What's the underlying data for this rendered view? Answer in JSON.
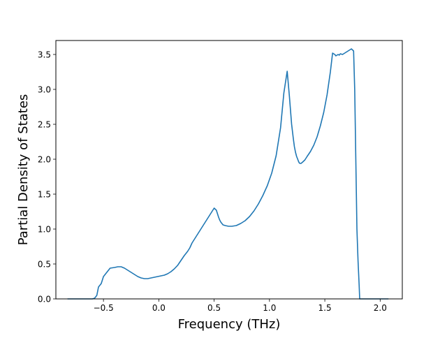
{
  "chart_data": {
    "type": "line",
    "title": "",
    "xlabel": "Frequency (THz)",
    "ylabel": "Partial Density of States",
    "xlim": [
      -0.93,
      2.2
    ],
    "ylim": [
      0.0,
      3.7
    ],
    "xticks": [
      -0.5,
      0.0,
      0.5,
      1.0,
      1.5,
      2.0
    ],
    "xtick_labels": [
      "−0.5",
      "0.0",
      "0.5",
      "1.0",
      "1.5",
      "2.0"
    ],
    "yticks": [
      0.0,
      0.5,
      1.0,
      1.5,
      2.0,
      2.5,
      3.0,
      3.5
    ],
    "ytick_labels": [
      "0.0",
      "0.5",
      "1.0",
      "1.5",
      "2.0",
      "2.5",
      "3.0",
      "3.5"
    ],
    "grid": false,
    "line_color": "#1f77b4",
    "series": [
      {
        "x": [
          -0.82,
          -0.75,
          -0.65,
          -0.6,
          -0.58,
          -0.56,
          -0.545,
          -0.52,
          -0.5,
          -0.47,
          -0.44,
          -0.4,
          -0.37,
          -0.34,
          -0.31,
          -0.28,
          -0.25,
          -0.22,
          -0.19,
          -0.16,
          -0.13,
          -0.1,
          -0.07,
          -0.04,
          -0.01,
          0.02,
          0.05,
          0.08,
          0.11,
          0.14,
          0.17,
          0.2,
          0.23,
          0.26,
          0.28,
          0.3,
          0.32,
          0.34,
          0.36,
          0.38,
          0.4,
          0.42,
          0.44,
          0.46,
          0.48,
          0.5,
          0.52,
          0.54,
          0.55,
          0.56,
          0.57,
          0.58,
          0.6,
          0.63,
          0.66,
          0.7,
          0.74,
          0.78,
          0.82,
          0.86,
          0.9,
          0.94,
          0.98,
          1.02,
          1.06,
          1.1,
          1.13,
          1.16,
          1.18,
          1.2,
          1.215,
          1.225,
          1.235,
          1.245,
          1.255,
          1.262,
          1.268,
          1.275,
          1.285,
          1.3,
          1.32,
          1.34,
          1.37,
          1.4,
          1.43,
          1.46,
          1.49,
          1.52,
          1.55,
          1.57,
          1.59,
          1.6,
          1.61,
          1.62,
          1.63,
          1.64,
          1.66,
          1.68,
          1.7,
          1.72,
          1.74,
          1.76,
          1.77,
          1.78,
          1.79,
          1.8,
          1.81,
          1.815,
          1.82,
          1.83,
          1.84,
          1.9,
          2.0,
          2.07
        ],
        "y": [
          0.0,
          0.0,
          0.0,
          0.0,
          0.01,
          0.05,
          0.17,
          0.22,
          0.32,
          0.38,
          0.44,
          0.45,
          0.46,
          0.46,
          0.44,
          0.41,
          0.38,
          0.35,
          0.32,
          0.3,
          0.29,
          0.29,
          0.3,
          0.31,
          0.32,
          0.33,
          0.34,
          0.36,
          0.39,
          0.43,
          0.48,
          0.55,
          0.62,
          0.68,
          0.73,
          0.8,
          0.85,
          0.9,
          0.95,
          1.0,
          1.05,
          1.1,
          1.15,
          1.2,
          1.25,
          1.3,
          1.27,
          1.17,
          1.13,
          1.1,
          1.08,
          1.06,
          1.05,
          1.04,
          1.04,
          1.05,
          1.08,
          1.12,
          1.18,
          1.26,
          1.36,
          1.48,
          1.62,
          1.8,
          2.05,
          2.45,
          2.95,
          3.26,
          2.9,
          2.5,
          2.3,
          2.18,
          2.1,
          2.04,
          2.0,
          1.97,
          1.95,
          1.94,
          1.94,
          1.96,
          1.99,
          2.04,
          2.11,
          2.2,
          2.32,
          2.48,
          2.67,
          2.92,
          3.25,
          3.52,
          3.5,
          3.48,
          3.49,
          3.5,
          3.49,
          3.51,
          3.5,
          3.52,
          3.54,
          3.56,
          3.58,
          3.55,
          3.0,
          2.0,
          1.0,
          0.55,
          0.2,
          0.0,
          0.0,
          0.0,
          0.0,
          0.0,
          0.0,
          0.0
        ]
      }
    ]
  }
}
